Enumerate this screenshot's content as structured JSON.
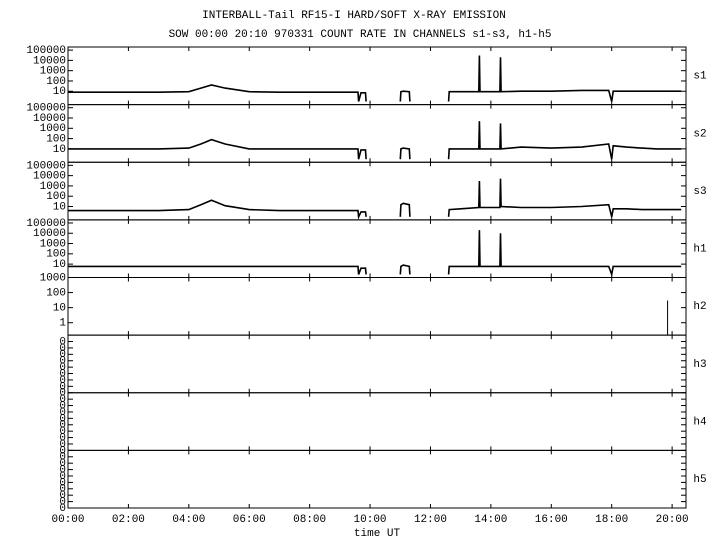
{
  "title": "INTERBALL-Tail RF15-I HARD/SOFT X-RAY EMISSION",
  "subtitle": "SOW 00:00 20:10 970331  COUNT RATE IN CHANNELS s1-s3, h1-h5",
  "x_axis": {
    "label": "time UT",
    "xlim": [
      0,
      20.46
    ],
    "xticks": [
      {
        "value": 0,
        "label": "00:00"
      },
      {
        "value": 2,
        "label": "02:00"
      },
      {
        "value": 4,
        "label": "04:00"
      },
      {
        "value": 6,
        "label": "06:00"
      },
      {
        "value": 8,
        "label": "08:00"
      },
      {
        "value": 10,
        "label": "10:00"
      },
      {
        "value": 12,
        "label": "12:00"
      },
      {
        "value": 14,
        "label": "14:00"
      },
      {
        "value": 16,
        "label": "16:00"
      },
      {
        "value": 18,
        "label": "18:00"
      },
      {
        "value": 20,
        "label": "20:00"
      }
    ]
  },
  "chart_data": [
    {
      "type": "line",
      "label": "s1",
      "log": true,
      "ylim": [
        0.5,
        200000
      ],
      "yticks": [
        10,
        100,
        1000,
        10000,
        100000
      ],
      "color": "#000000",
      "x": [
        0,
        1,
        2,
        3,
        4,
        4.4,
        4.75,
        5.2,
        6,
        7,
        8,
        9,
        9.6,
        9.62,
        9.7,
        9.85,
        9.87,
        10.4,
        11.0,
        11.02,
        11.1,
        11.3,
        11.32,
        12,
        12.6,
        12.62,
        13,
        13.6,
        13.62,
        13.64,
        14,
        14.3,
        14.32,
        14.34,
        15,
        16,
        17,
        17.9,
        18.0,
        18.05,
        18.5,
        19,
        19.5,
        20,
        20.3
      ],
      "values": [
        8,
        8,
        8,
        8,
        9,
        20,
        40,
        20,
        9,
        8,
        8,
        8,
        8,
        1,
        7,
        7,
        1,
        null,
        1,
        9,
        10,
        9,
        1,
        null,
        1,
        9,
        9,
        9,
        30000,
        9,
        9,
        9,
        20000,
        9,
        10,
        10,
        12,
        12,
        1,
        10,
        10,
        10,
        10,
        10,
        10
      ]
    },
    {
      "type": "line",
      "label": "s2",
      "log": true,
      "ylim": [
        0.5,
        200000
      ],
      "yticks": [
        10,
        100,
        1000,
        10000,
        100000
      ],
      "color": "#000000",
      "x": [
        0,
        1,
        2,
        3,
        4,
        4.4,
        4.75,
        5.2,
        6,
        7,
        8,
        9,
        9.6,
        9.62,
        9.7,
        9.85,
        9.87,
        10.4,
        11.0,
        11.02,
        11.1,
        11.3,
        11.32,
        12,
        12.6,
        12.62,
        13,
        13.6,
        13.62,
        13.64,
        14,
        14.3,
        14.32,
        14.34,
        15,
        16,
        17,
        17.9,
        18.0,
        18.05,
        18.5,
        19,
        19.5,
        20,
        20.3
      ],
      "values": [
        10,
        10,
        10,
        10,
        12,
        30,
        80,
        30,
        10,
        10,
        10,
        10,
        10,
        1,
        8,
        8,
        1,
        null,
        1,
        10,
        12,
        10,
        1,
        null,
        1,
        10,
        10,
        10,
        5000,
        10,
        10,
        10,
        3000,
        10,
        15,
        12,
        15,
        30,
        1,
        20,
        15,
        12,
        10,
        10,
        10
      ]
    },
    {
      "type": "line",
      "label": "s3",
      "log": true,
      "ylim": [
        0.5,
        200000
      ],
      "yticks": [
        10,
        100,
        1000,
        10000,
        100000
      ],
      "color": "#000000",
      "x": [
        0,
        1,
        2,
        3,
        4,
        4.4,
        4.75,
        5.2,
        6,
        7,
        8,
        9,
        9.6,
        9.62,
        9.7,
        9.85,
        9.87,
        10.4,
        11.0,
        11.02,
        11.1,
        11.3,
        11.32,
        12,
        12.6,
        12.62,
        13,
        13.6,
        13.62,
        13.64,
        14,
        14.3,
        14.32,
        14.34,
        15,
        16,
        17,
        17.9,
        18.0,
        18.05,
        18.5,
        19,
        19.5,
        20,
        20.3
      ],
      "values": [
        4,
        4,
        4,
        4,
        5,
        15,
        40,
        12,
        5,
        4,
        4,
        4,
        4,
        1,
        3,
        3,
        1,
        null,
        1,
        15,
        20,
        15,
        1,
        null,
        1,
        5,
        6,
        8,
        3000,
        8,
        8,
        8,
        5000,
        10,
        8,
        8,
        10,
        15,
        1,
        6,
        6,
        5,
        5,
        5,
        5
      ]
    },
    {
      "type": "line",
      "label": "h1",
      "log": true,
      "ylim": [
        0.5,
        200000
      ],
      "yticks": [
        10,
        100,
        1000,
        10000,
        100000
      ],
      "color": "#000000",
      "x": [
        0,
        1,
        2,
        3,
        4,
        4.4,
        4.75,
        5.2,
        6,
        7,
        8,
        9,
        9.6,
        9.62,
        9.7,
        9.85,
        9.87,
        10.4,
        11.0,
        11.02,
        11.1,
        11.3,
        11.32,
        12,
        12.6,
        12.62,
        13,
        13.6,
        13.62,
        13.64,
        14,
        14.3,
        14.32,
        14.34,
        15,
        16,
        17,
        17.9,
        18.0,
        18.05,
        18.5,
        19,
        19.5,
        20,
        20.3
      ],
      "values": [
        6,
        6,
        6,
        6,
        6,
        6,
        6,
        6,
        6,
        6,
        6,
        6,
        6,
        1,
        4,
        4,
        1,
        null,
        1,
        6,
        8,
        6,
        1,
        null,
        1,
        6,
        6,
        6,
        20000,
        6,
        6,
        6,
        10000,
        6,
        6,
        6,
        6,
        6,
        1,
        6,
        6,
        6,
        6,
        6,
        6
      ]
    },
    {
      "type": "bar",
      "label": "h2",
      "log": true,
      "ylim": [
        0.15,
        1000
      ],
      "yticks": [
        1,
        10,
        100,
        1000
      ],
      "color": "#000000",
      "x": [
        19.85
      ],
      "values": [
        30
      ]
    },
    {
      "type": "line",
      "label": "h3",
      "log": false,
      "ylim": [
        0,
        0.45
      ],
      "yticks": [
        {
          "value": 0,
          "label": "0"
        },
        {
          "value": 0.05,
          "label": "0"
        },
        {
          "value": 0.1,
          "label": "0"
        },
        {
          "value": 0.15,
          "label": "0"
        },
        {
          "value": 0.2,
          "label": "0"
        },
        {
          "value": 0.25,
          "label": "0"
        },
        {
          "value": 0.3,
          "label": "0"
        },
        {
          "value": 0.35,
          "label": "0"
        },
        {
          "value": 0.4,
          "label": "0"
        }
      ]
    },
    {
      "type": "line",
      "label": "h4",
      "log": false,
      "ylim": [
        0,
        0.45
      ],
      "yticks": [
        {
          "value": 0,
          "label": "0"
        },
        {
          "value": 0.05,
          "label": "0"
        },
        {
          "value": 0.1,
          "label": "0"
        },
        {
          "value": 0.15,
          "label": "0"
        },
        {
          "value": 0.2,
          "label": "0"
        },
        {
          "value": 0.25,
          "label": "0"
        },
        {
          "value": 0.3,
          "label": "0"
        },
        {
          "value": 0.35,
          "label": "0"
        },
        {
          "value": 0.4,
          "label": "0"
        }
      ]
    },
    {
      "type": "line",
      "label": "h5",
      "log": false,
      "ylim": [
        0,
        0.45
      ],
      "yticks": [
        {
          "value": 0,
          "label": "0"
        },
        {
          "value": 0.05,
          "label": "0"
        },
        {
          "value": 0.1,
          "label": "0"
        },
        {
          "value": 0.15,
          "label": "0"
        },
        {
          "value": 0.2,
          "label": "0"
        },
        {
          "value": 0.25,
          "label": "0"
        },
        {
          "value": 0.3,
          "label": "0"
        },
        {
          "value": 0.35,
          "label": "0"
        },
        {
          "value": 0.4,
          "label": "0"
        }
      ]
    }
  ]
}
